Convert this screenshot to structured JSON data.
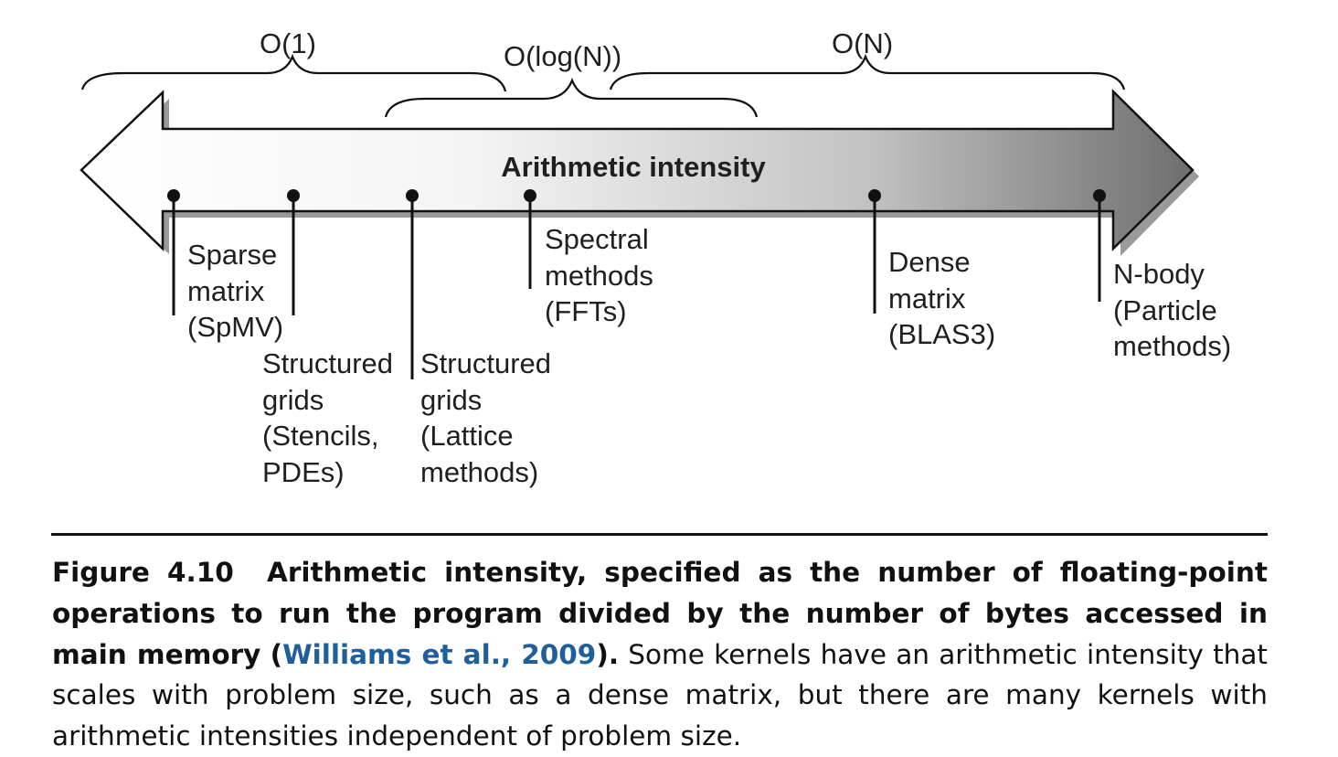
{
  "diagram": {
    "arrow_label": "Arithmetic intensity",
    "complexity_braces": [
      {
        "label": "O(1)"
      },
      {
        "label": "O(log(N))"
      },
      {
        "label": "O(N)"
      }
    ],
    "kernels": [
      {
        "lines": [
          "Sparse",
          "matrix",
          "(SpMV)"
        ]
      },
      {
        "lines": [
          "Structured",
          "grids",
          "(Stencils,",
          "PDEs)"
        ]
      },
      {
        "lines": [
          "Structured",
          "grids",
          "(Lattice",
          "methods)"
        ]
      },
      {
        "lines": [
          "Spectral",
          "methods",
          "(FFTs)"
        ]
      },
      {
        "lines": [
          "Dense",
          "matrix",
          "(BLAS3)"
        ]
      },
      {
        "lines": [
          "N-body",
          "(Particle",
          "methods)"
        ]
      }
    ],
    "colors": {
      "arrow_light": "#ffffff",
      "arrow_dark": "#7d7d7d",
      "outline": "#111111"
    }
  },
  "caption": {
    "figure_number": "Figure 4.10",
    "bold_text": "Arithmetic intensity, specified as the number of floating-point opera­tions to run the program divided by the number of bytes accessed in main memory",
    "open_paren": "(",
    "citation": "Williams et al., 2009",
    "close_paren": ").",
    "body_text": "Some kernels have an arithmetic intensity that scales with prob­lem size, such as a dense matrix, but there are many kernels with arithmetic intensities independent of problem size."
  }
}
